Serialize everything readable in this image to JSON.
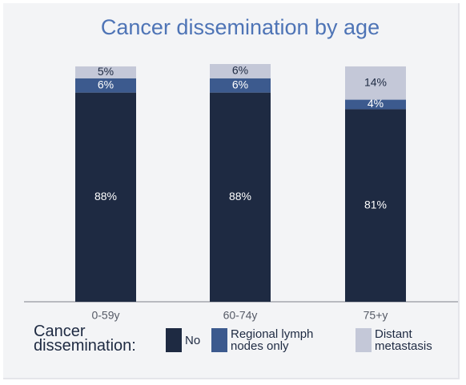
{
  "chart_data": {
    "type": "stacked_bar",
    "title": "Cancer dissemination by age",
    "categories": [
      "0-59y",
      "60-74y",
      "75+y"
    ],
    "legend_title": "Cancer dissemination:",
    "series": [
      {
        "name": "No",
        "color": "#1e2a42",
        "values": [
          88,
          88,
          81
        ],
        "value_labels": [
          "88%",
          "88%",
          "81%"
        ]
      },
      {
        "name": "Regional lymph nodes only",
        "color": "#3c5a8e",
        "values": [
          6,
          6,
          4
        ],
        "value_labels": [
          "6%",
          "6%",
          "4%"
        ]
      },
      {
        "name": "Distant metastasis",
        "color": "#c4c8d8",
        "values": [
          5,
          6,
          14
        ],
        "value_labels": [
          "5%",
          "6%",
          "14%"
        ]
      }
    ],
    "ylim": [
      0,
      100
    ]
  }
}
